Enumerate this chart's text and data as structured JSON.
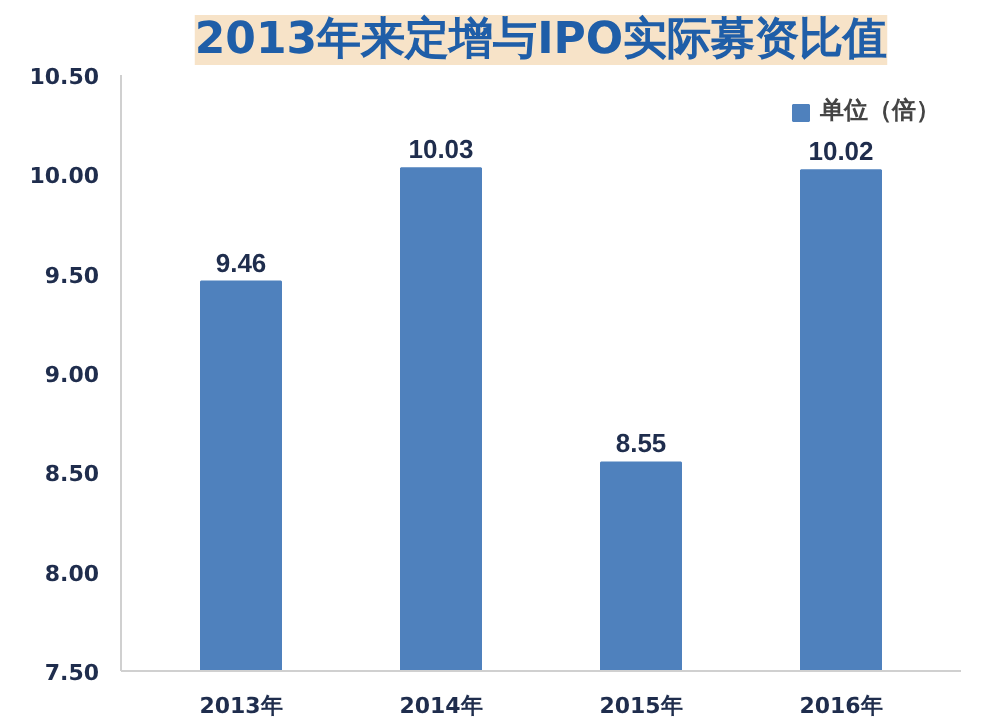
{
  "chart_data": {
    "type": "bar",
    "title": "2013年来定增与IPO实际募资比值",
    "categories": [
      "2013年",
      "2014年",
      "2015年",
      "2016年"
    ],
    "series": [
      {
        "name": "单位（倍）",
        "color": "#4f81bd",
        "values": [
          9.46,
          10.03,
          8.55,
          10.02
        ]
      }
    ],
    "ylim": [
      7.5,
      10.5
    ],
    "yticks": [
      {
        "value": 7.5,
        "label": "7.50"
      },
      {
        "value": 8.0,
        "label": "8.00"
      },
      {
        "value": 8.5,
        "label": "8.50"
      },
      {
        "value": 9.0,
        "label": "9.00"
      },
      {
        "value": 9.5,
        "label": "9.50"
      },
      {
        "value": 10.0,
        "label": "10.00"
      },
      {
        "value": 10.5,
        "label": "10.50"
      }
    ],
    "data_labels": true,
    "legend": "top right",
    "grid": false
  }
}
